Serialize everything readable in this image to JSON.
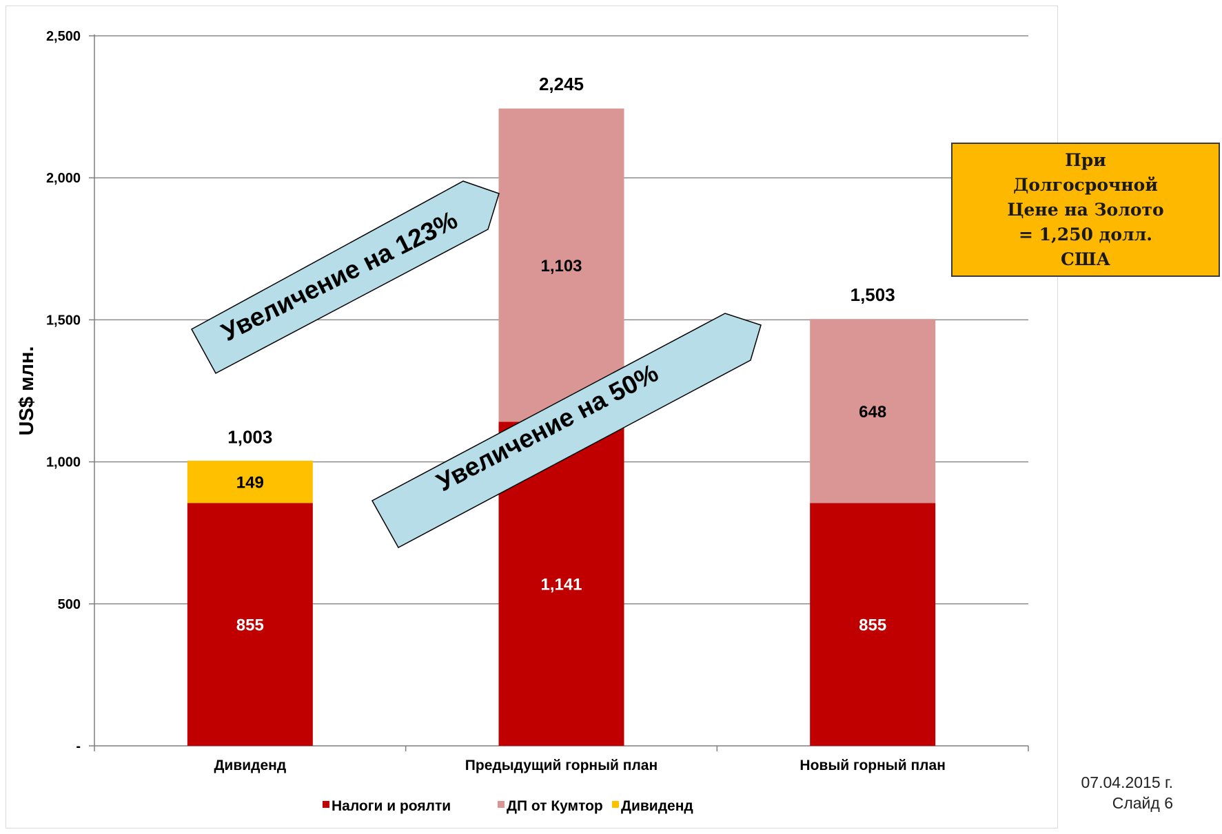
{
  "chart_data": {
    "type": "bar",
    "stacked": true,
    "categories": [
      "Дивиденд",
      "Предыдущий горный план",
      "Новый горный план"
    ],
    "series": [
      {
        "name": "Налоги и роялти",
        "color": "#c00000",
        "values": [
          855,
          1141,
          855
        ],
        "labels": [
          "855",
          "1,141",
          "855"
        ]
      },
      {
        "name": "ДП от Кумтор",
        "color": "#d99694",
        "values": [
          0,
          1103,
          648
        ],
        "labels": [
          "",
          "1,103",
          "648"
        ]
      },
      {
        "name": "Дивиденд",
        "color": "#ffc000",
        "values": [
          149,
          0,
          0
        ],
        "labels": [
          "149",
          "",
          ""
        ]
      }
    ],
    "totals": [
      1003,
      2245,
      1503
    ],
    "total_labels": [
      "1,003",
      "2,245",
      "1,503"
    ],
    "ylabel": "US$ млн.",
    "ylim": [
      0,
      2500
    ],
    "yticks": [
      0,
      500,
      1000,
      1500,
      2000,
      2500
    ],
    "ytick_labels": [
      "-",
      "500",
      "1,000",
      "1,500",
      "2,000",
      "2,500"
    ],
    "grid": true,
    "legend_position": "bottom",
    "annotations": [
      "Увеличение на 123%",
      "Увеличение на 50%"
    ]
  },
  "gold_box_text": "При\nДолгосрочной\nЦене на Золото\n= 1,250 долл.\nСША",
  "slide_date": "07.04.2015 г.",
  "slide_number": "Слайд 6"
}
